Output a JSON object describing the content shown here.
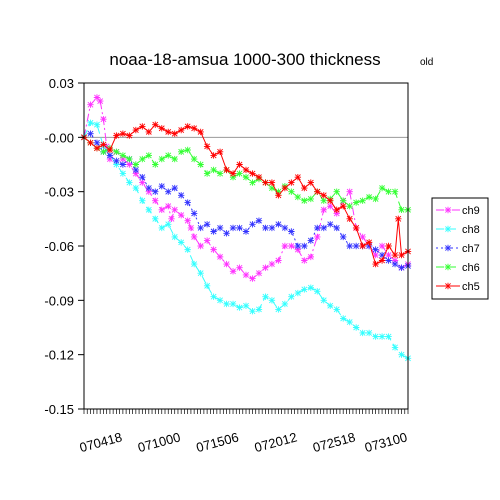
{
  "chart_data": {
    "type": "line",
    "title": "noaa-18-amsua   1000-300 thickness",
    "subtitle": "old",
    "xlabel": "",
    "ylabel": "",
    "x_tick_labels": [
      "070418",
      "071000",
      "071506",
      "072012",
      "072518",
      "073100"
    ],
    "x_range": [
      0,
      100
    ],
    "x_tick_positions": [
      12,
      30,
      48,
      66,
      84,
      100
    ],
    "ylim": [
      -0.15,
      0.03
    ],
    "y_ticks": [
      0.03,
      -0.0,
      -0.03,
      -0.06,
      -0.09,
      -0.12,
      -0.15
    ],
    "y_tick_labels": [
      "0.03",
      "-0.00",
      "-0.03",
      "-0.06",
      "-0.09",
      "-0.12",
      "-0.15"
    ],
    "zero_line": true,
    "grid": false,
    "legend_position": "right",
    "series": [
      {
        "name": "ch9",
        "color": "#ff33ff",
        "dash": "8,3,2,3",
        "points": [
          [
            0,
            0.0
          ],
          [
            2,
            0.018
          ],
          [
            4,
            0.022
          ],
          [
            5,
            0.02
          ],
          [
            6,
            0.01
          ],
          [
            7,
            -0.005
          ],
          [
            8,
            -0.012
          ],
          [
            10,
            -0.008
          ],
          [
            12,
            -0.012
          ],
          [
            14,
            -0.015
          ],
          [
            16,
            -0.02
          ],
          [
            18,
            -0.025
          ],
          [
            20,
            -0.03
          ],
          [
            22,
            -0.035
          ],
          [
            24,
            -0.04
          ],
          [
            26,
            -0.038
          ],
          [
            27,
            -0.045
          ],
          [
            28,
            -0.04
          ],
          [
            30,
            -0.043
          ],
          [
            32,
            -0.046
          ],
          [
            33,
            -0.05
          ],
          [
            34,
            -0.055
          ],
          [
            36,
            -0.06
          ],
          [
            38,
            -0.057
          ],
          [
            40,
            -0.062
          ],
          [
            42,
            -0.066
          ],
          [
            44,
            -0.07
          ],
          [
            46,
            -0.074
          ],
          [
            48,
            -0.072
          ],
          [
            50,
            -0.076
          ],
          [
            52,
            -0.078
          ],
          [
            54,
            -0.075
          ],
          [
            56,
            -0.072
          ],
          [
            58,
            -0.07
          ],
          [
            60,
            -0.068
          ],
          [
            62,
            -0.06
          ],
          [
            64,
            -0.06
          ],
          [
            66,
            -0.062
          ],
          [
            68,
            -0.068
          ],
          [
            70,
            -0.066
          ],
          [
            72,
            -0.055
          ],
          [
            74,
            -0.04
          ],
          [
            76,
            -0.038
          ],
          [
            78,
            -0.042
          ],
          [
            80,
            -0.035
          ],
          [
            82,
            -0.03
          ],
          [
            84,
            -0.05
          ],
          [
            86,
            -0.055
          ],
          [
            88,
            -0.06
          ],
          [
            90,
            -0.065
          ],
          [
            92,
            -0.06
          ],
          [
            94,
            -0.065
          ],
          [
            96,
            -0.068
          ],
          [
            98,
            -0.072
          ],
          [
            100,
            -0.07
          ]
        ]
      },
      {
        "name": "ch8",
        "color": "#33ffff",
        "dash": "8,4",
        "points": [
          [
            0,
            0.0
          ],
          [
            2,
            0.008
          ],
          [
            4,
            0.007
          ],
          [
            6,
            -0.005
          ],
          [
            8,
            -0.01
          ],
          [
            10,
            -0.015
          ],
          [
            12,
            -0.02
          ],
          [
            14,
            -0.025
          ],
          [
            16,
            -0.028
          ],
          [
            18,
            -0.035
          ],
          [
            20,
            -0.04
          ],
          [
            22,
            -0.045
          ],
          [
            24,
            -0.05
          ],
          [
            26,
            -0.048
          ],
          [
            28,
            -0.055
          ],
          [
            30,
            -0.058
          ],
          [
            32,
            -0.062
          ],
          [
            34,
            -0.07
          ],
          [
            36,
            -0.075
          ],
          [
            38,
            -0.082
          ],
          [
            40,
            -0.088
          ],
          [
            42,
            -0.09
          ],
          [
            44,
            -0.092
          ],
          [
            46,
            -0.092
          ],
          [
            48,
            -0.094
          ],
          [
            50,
            -0.093
          ],
          [
            52,
            -0.096
          ],
          [
            54,
            -0.095
          ],
          [
            56,
            -0.088
          ],
          [
            58,
            -0.09
          ],
          [
            60,
            -0.095
          ],
          [
            62,
            -0.092
          ],
          [
            64,
            -0.088
          ],
          [
            66,
            -0.086
          ],
          [
            68,
            -0.084
          ],
          [
            70,
            -0.083
          ],
          [
            72,
            -0.085
          ],
          [
            74,
            -0.09
          ],
          [
            76,
            -0.093
          ],
          [
            78,
            -0.095
          ],
          [
            80,
            -0.1
          ],
          [
            82,
            -0.102
          ],
          [
            84,
            -0.105
          ],
          [
            86,
            -0.108
          ],
          [
            88,
            -0.108
          ],
          [
            90,
            -0.11
          ],
          [
            92,
            -0.11
          ],
          [
            94,
            -0.11
          ],
          [
            96,
            -0.116
          ],
          [
            98,
            -0.12
          ],
          [
            100,
            -0.122
          ]
        ]
      },
      {
        "name": "ch7",
        "color": "#3333ff",
        "dash": "2,3",
        "points": [
          [
            0,
            0.0
          ],
          [
            2,
            0.002
          ],
          [
            4,
            -0.003
          ],
          [
            6,
            -0.008
          ],
          [
            8,
            -0.01
          ],
          [
            10,
            -0.013
          ],
          [
            12,
            -0.015
          ],
          [
            14,
            -0.012
          ],
          [
            16,
            -0.018
          ],
          [
            18,
            -0.022
          ],
          [
            20,
            -0.028
          ],
          [
            22,
            -0.03
          ],
          [
            24,
            -0.027
          ],
          [
            26,
            -0.03
          ],
          [
            28,
            -0.028
          ],
          [
            30,
            -0.032
          ],
          [
            32,
            -0.036
          ],
          [
            34,
            -0.042
          ],
          [
            36,
            -0.05
          ],
          [
            38,
            -0.048
          ],
          [
            40,
            -0.052
          ],
          [
            42,
            -0.05
          ],
          [
            44,
            -0.053
          ],
          [
            46,
            -0.05
          ],
          [
            48,
            -0.05
          ],
          [
            50,
            -0.052
          ],
          [
            52,
            -0.048
          ],
          [
            54,
            -0.046
          ],
          [
            56,
            -0.05
          ],
          [
            58,
            -0.05
          ],
          [
            60,
            -0.048
          ],
          [
            62,
            -0.05
          ],
          [
            64,
            -0.052
          ],
          [
            66,
            -0.06
          ],
          [
            68,
            -0.06
          ],
          [
            70,
            -0.057
          ],
          [
            72,
            -0.05
          ],
          [
            74,
            -0.05
          ],
          [
            76,
            -0.048
          ],
          [
            78,
            -0.05
          ],
          [
            80,
            -0.055
          ],
          [
            82,
            -0.06
          ],
          [
            84,
            -0.06
          ],
          [
            86,
            -0.06
          ],
          [
            88,
            -0.06
          ],
          [
            90,
            -0.062
          ],
          [
            92,
            -0.065
          ],
          [
            94,
            -0.068
          ],
          [
            96,
            -0.07
          ],
          [
            98,
            -0.072
          ],
          [
            100,
            -0.071
          ]
        ]
      },
      {
        "name": "ch6",
        "color": "#33ff33",
        "dash": "8,4",
        "points": [
          [
            0,
            0.0
          ],
          [
            2,
            -0.003
          ],
          [
            4,
            -0.006
          ],
          [
            6,
            -0.008
          ],
          [
            8,
            -0.006
          ],
          [
            10,
            -0.008
          ],
          [
            12,
            -0.01
          ],
          [
            14,
            -0.012
          ],
          [
            16,
            -0.015
          ],
          [
            18,
            -0.012
          ],
          [
            20,
            -0.01
          ],
          [
            22,
            -0.015
          ],
          [
            24,
            -0.012
          ],
          [
            26,
            -0.01
          ],
          [
            28,
            -0.012
          ],
          [
            30,
            -0.008
          ],
          [
            32,
            -0.007
          ],
          [
            34,
            -0.012
          ],
          [
            36,
            -0.015
          ],
          [
            38,
            -0.02
          ],
          [
            40,
            -0.018
          ],
          [
            42,
            -0.02
          ],
          [
            44,
            -0.018
          ],
          [
            46,
            -0.022
          ],
          [
            48,
            -0.02
          ],
          [
            50,
            -0.022
          ],
          [
            52,
            -0.025
          ],
          [
            54,
            -0.023
          ],
          [
            56,
            -0.025
          ],
          [
            58,
            -0.028
          ],
          [
            60,
            -0.03
          ],
          [
            62,
            -0.027
          ],
          [
            64,
            -0.03
          ],
          [
            66,
            -0.033
          ],
          [
            68,
            -0.035
          ],
          [
            70,
            -0.034
          ],
          [
            72,
            -0.03
          ],
          [
            74,
            -0.035
          ],
          [
            76,
            -0.034
          ],
          [
            78,
            -0.03
          ],
          [
            80,
            -0.035
          ],
          [
            82,
            -0.038
          ],
          [
            84,
            -0.036
          ],
          [
            86,
            -0.035
          ],
          [
            88,
            -0.033
          ],
          [
            90,
            -0.034
          ],
          [
            92,
            -0.028
          ],
          [
            94,
            -0.03
          ],
          [
            96,
            -0.03
          ],
          [
            98,
            -0.04
          ],
          [
            100,
            -0.04
          ]
        ]
      },
      {
        "name": "ch5",
        "color": "#ff0000",
        "dash": "",
        "points": [
          [
            0,
            0.0
          ],
          [
            2,
            -0.003
          ],
          [
            4,
            -0.006
          ],
          [
            6,
            -0.004
          ],
          [
            8,
            -0.007
          ],
          [
            10,
            0.001
          ],
          [
            12,
            0.002
          ],
          [
            14,
            0.001
          ],
          [
            16,
            0.004
          ],
          [
            18,
            0.006
          ],
          [
            20,
            0.003
          ],
          [
            22,
            0.007
          ],
          [
            24,
            0.005
          ],
          [
            26,
            0.003
          ],
          [
            28,
            0.002
          ],
          [
            30,
            0.004
          ],
          [
            32,
            0.006
          ],
          [
            34,
            0.005
          ],
          [
            36,
            0.003
          ],
          [
            38,
            -0.005
          ],
          [
            40,
            -0.01
          ],
          [
            42,
            -0.008
          ],
          [
            44,
            -0.018
          ],
          [
            46,
            -0.02
          ],
          [
            48,
            -0.015
          ],
          [
            50,
            -0.018
          ],
          [
            52,
            -0.02
          ],
          [
            54,
            -0.022
          ],
          [
            56,
            -0.025
          ],
          [
            58,
            -0.025
          ],
          [
            60,
            -0.032
          ],
          [
            62,
            -0.028
          ],
          [
            64,
            -0.025
          ],
          [
            66,
            -0.022
          ],
          [
            68,
            -0.028
          ],
          [
            70,
            -0.025
          ],
          [
            72,
            -0.03
          ],
          [
            74,
            -0.032
          ],
          [
            76,
            -0.035
          ],
          [
            78,
            -0.04
          ],
          [
            80,
            -0.038
          ],
          [
            82,
            -0.045
          ],
          [
            84,
            -0.05
          ],
          [
            86,
            -0.06
          ],
          [
            88,
            -0.058
          ],
          [
            90,
            -0.07
          ],
          [
            92,
            -0.068
          ],
          [
            94,
            -0.06
          ],
          [
            96,
            -0.065
          ],
          [
            97,
            -0.045
          ],
          [
            98,
            -0.065
          ],
          [
            100,
            -0.063
          ]
        ]
      }
    ]
  }
}
